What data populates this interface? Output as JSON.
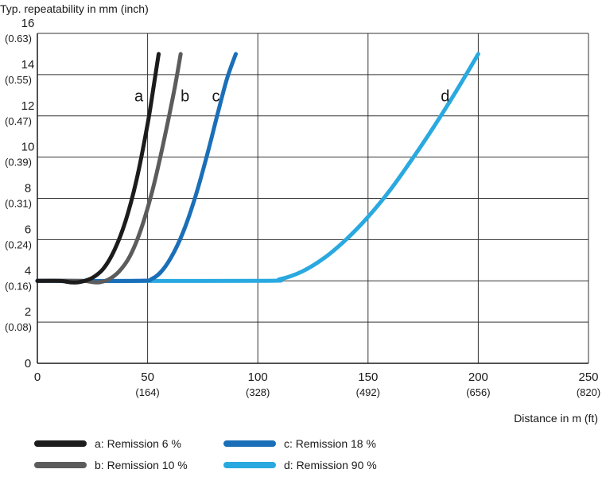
{
  "chart_data": {
    "type": "line",
    "title": "",
    "ylabel": "Typ. repeatability in mm (inch)",
    "xlabel": "Distance in m (ft)",
    "xlim": [
      0,
      250
    ],
    "ylim": [
      0,
      16
    ],
    "grid": true,
    "x_ticks": [
      {
        "value": 0,
        "label": "0",
        "sub": ""
      },
      {
        "value": 50,
        "label": "50",
        "sub": "(164)"
      },
      {
        "value": 100,
        "label": "100",
        "sub": "(328)"
      },
      {
        "value": 150,
        "label": "150",
        "sub": "(492)"
      },
      {
        "value": 200,
        "label": "200",
        "sub": "(656)"
      },
      {
        "value": 250,
        "label": "250",
        "sub": "(820)"
      }
    ],
    "y_ticks": [
      {
        "value": 0,
        "label": "0",
        "sub": ""
      },
      {
        "value": 2,
        "label": "2",
        "sub": "(0.08)"
      },
      {
        "value": 4,
        "label": "4",
        "sub": "(0.16)"
      },
      {
        "value": 6,
        "label": "6",
        "sub": "(0.24)"
      },
      {
        "value": 8,
        "label": "8",
        "sub": "(0.31)"
      },
      {
        "value": 10,
        "label": "10",
        "sub": "(0.39)"
      },
      {
        "value": 12,
        "label": "12",
        "sub": "(0.47)"
      },
      {
        "value": 14,
        "label": "14",
        "sub": "(0.55)"
      },
      {
        "value": 16,
        "label": "16",
        "sub": "(0.63)"
      }
    ],
    "series": [
      {
        "id": "a",
        "tag": "a",
        "name": "a: Remission 6 %",
        "color": "#1c1c1c",
        "tag_at": [
          46,
          12.7
        ],
        "points": [
          [
            0,
            4.0
          ],
          [
            10,
            4.0
          ],
          [
            16,
            3.92
          ],
          [
            20,
            3.96
          ],
          [
            25,
            4.15
          ],
          [
            30,
            4.6
          ],
          [
            35,
            5.5
          ],
          [
            40,
            6.9
          ],
          [
            45,
            8.9
          ],
          [
            50,
            11.6
          ],
          [
            53,
            13.6
          ],
          [
            55,
            15.0
          ]
        ]
      },
      {
        "id": "b",
        "tag": "b",
        "name": "b: Remission 10 %",
        "color": "#5c5c5c",
        "tag_at": [
          67,
          12.7
        ],
        "points": [
          [
            0,
            4.0
          ],
          [
            20,
            4.0
          ],
          [
            27,
            3.92
          ],
          [
            32,
            4.05
          ],
          [
            37,
            4.45
          ],
          [
            42,
            5.2
          ],
          [
            47,
            6.5
          ],
          [
            52,
            8.3
          ],
          [
            57,
            10.6
          ],
          [
            62,
            13.2
          ],
          [
            65,
            15.0
          ]
        ]
      },
      {
        "id": "c",
        "tag": "c",
        "name": "c: Remission 18 %",
        "color": "#1a6fb8",
        "tag_at": [
          81,
          12.7
        ],
        "points": [
          [
            0,
            4.0
          ],
          [
            45,
            4.0
          ],
          [
            52,
            4.1
          ],
          [
            57,
            4.55
          ],
          [
            62,
            5.4
          ],
          [
            67,
            6.6
          ],
          [
            72,
            8.2
          ],
          [
            77,
            10.1
          ],
          [
            82,
            12.2
          ],
          [
            86,
            13.8
          ],
          [
            90,
            15.0
          ]
        ]
      },
      {
        "id": "d",
        "tag": "d",
        "name": "d: Remission 90 %",
        "color": "#29a9e0",
        "tag_at": [
          185,
          12.7
        ],
        "points": [
          [
            0,
            4.0
          ],
          [
            100,
            4.0
          ],
          [
            110,
            4.08
          ],
          [
            120,
            4.45
          ],
          [
            130,
            5.1
          ],
          [
            140,
            6.0
          ],
          [
            150,
            7.1
          ],
          [
            160,
            8.4
          ],
          [
            170,
            9.9
          ],
          [
            180,
            11.5
          ],
          [
            190,
            13.2
          ],
          [
            200,
            15.0
          ]
        ]
      }
    ]
  }
}
